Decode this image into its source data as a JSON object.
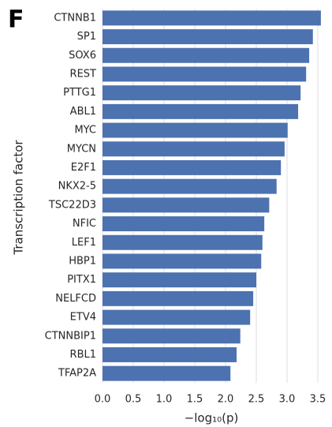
{
  "chart_data": {
    "type": "bar",
    "orientation": "horizontal",
    "panel_label": "F",
    "xlabel": "−log₁₀(p)",
    "ylabel": "Transcription factor",
    "categories": [
      "CTNNB1",
      "SP1",
      "SOX6",
      "REST",
      "PTTG1",
      "ABL1",
      "MYC",
      "MYCN",
      "E2F1",
      "NKX2-5",
      "TSC22D3",
      "NFIC",
      "LEF1",
      "HBP1",
      "PITX1",
      "NELFCD",
      "ETV4",
      "CTNNBIP1",
      "RBL1",
      "TFAP2A"
    ],
    "values": [
      3.55,
      3.42,
      3.36,
      3.31,
      3.22,
      3.18,
      3.01,
      2.96,
      2.9,
      2.83,
      2.71,
      2.63,
      2.6,
      2.58,
      2.5,
      2.45,
      2.4,
      2.24,
      2.18,
      2.08
    ],
    "color": "#4c72b0",
    "xlim": [
      0,
      3.7
    ],
    "xticks": [
      {
        "value": 0,
        "label": "0.0"
      },
      {
        "value": 0.5,
        "label": "0.5"
      },
      {
        "value": 1,
        "label": "1.0"
      },
      {
        "value": 1.5,
        "label": "1.5"
      },
      {
        "value": 2,
        "label": "2.0"
      },
      {
        "value": 2.5,
        "label": "2.5"
      },
      {
        "value": 3,
        "label": "3.0"
      },
      {
        "value": 3.5,
        "label": "3.5"
      }
    ],
    "grid": true
  }
}
